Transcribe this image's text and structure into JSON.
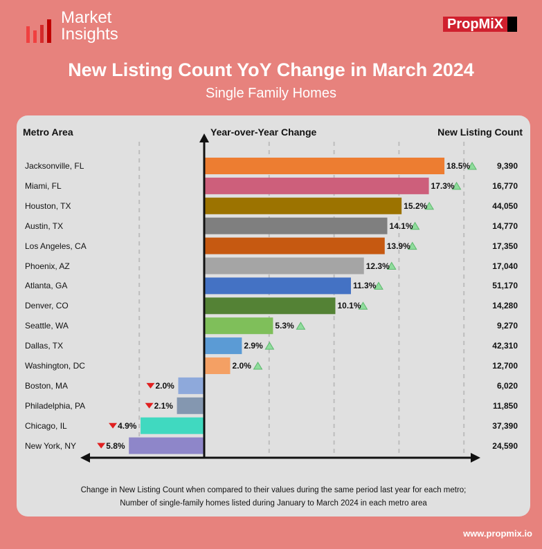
{
  "brand": {
    "logo_line1": "Market",
    "logo_line2": "Insights",
    "partner_logo": "PropMiX",
    "website": "www.propmix.io"
  },
  "title": "New Listing Count YoY Change in March 2024",
  "subtitle": "Single Family Homes",
  "headers": {
    "metro": "Metro Area",
    "yoy": "Year-over-Year Change",
    "count": "New Listing Count"
  },
  "footnote_line1": "Change in New Listing Count when compared to their values during the same period last year for each metro;",
  "footnote_line2": "Number of single-family homes listed during January to March 2024 in each metro area",
  "chart_data": {
    "type": "bar",
    "orientation": "horizontal",
    "xlim": [
      -10,
      20
    ],
    "gridlines": [
      -5,
      5,
      10,
      15,
      20
    ],
    "rows": [
      {
        "metro": "Jacksonville, FL",
        "yoy": 18.5,
        "label": "18.5%",
        "count": "9,390",
        "color": "#ED7D31"
      },
      {
        "metro": "Miami, FL",
        "yoy": 17.3,
        "label": "17.3%",
        "count": "16,770",
        "color": "#CD5F7B"
      },
      {
        "metro": "Houston, TX",
        "yoy": 15.2,
        "label": "15.2%",
        "count": "44,050",
        "color": "#9C7300"
      },
      {
        "metro": "Austin, TX",
        "yoy": 14.1,
        "label": "14.1%",
        "count": "14,770",
        "color": "#7F7F7F"
      },
      {
        "metro": "Los Angeles, CA",
        "yoy": 13.9,
        "label": "13.9%",
        "count": "17,350",
        "color": "#C65911"
      },
      {
        "metro": "Phoenix, AZ",
        "yoy": 12.3,
        "label": "12.3%",
        "count": "17,040",
        "color": "#A5A5A5"
      },
      {
        "metro": "Atlanta, GA",
        "yoy": 11.3,
        "label": "11.3%",
        "count": "51,170",
        "color": "#4472C4"
      },
      {
        "metro": "Denver, CO",
        "yoy": 10.1,
        "label": "10.1%",
        "count": "14,280",
        "color": "#548235"
      },
      {
        "metro": "Seattle, WA",
        "yoy": 5.3,
        "label": "5.3%",
        "count": "9,270",
        "color": "#7FBF5A"
      },
      {
        "metro": "Dallas, TX",
        "yoy": 2.9,
        "label": "2.9%",
        "count": "42,310",
        "color": "#5B9BD5"
      },
      {
        "metro": "Washington, DC",
        "yoy": 2.0,
        "label": "2.0%",
        "count": "12,700",
        "color": "#F4A064"
      },
      {
        "metro": "Boston, MA",
        "yoy": -2.0,
        "label": "2.0%",
        "count": "6,020",
        "color": "#8EA9DB"
      },
      {
        "metro": "Philadelphia, PA",
        "yoy": -2.1,
        "label": "2.1%",
        "count": "11,850",
        "color": "#8497B0"
      },
      {
        "metro": "Chicago, IL",
        "yoy": -4.9,
        "label": "4.9%",
        "count": "37,390",
        "color": "#40D9C0"
      },
      {
        "metro": "New York, NY",
        "yoy": -5.8,
        "label": "5.8%",
        "count": "24,590",
        "color": "#8E86C9"
      }
    ]
  }
}
